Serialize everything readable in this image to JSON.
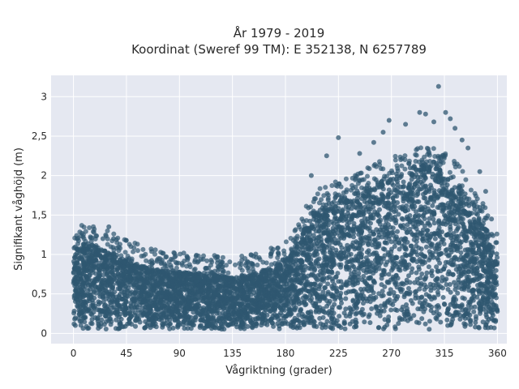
{
  "chart_data": {
    "type": "scatter",
    "title": "År 1979 - 2019",
    "subtitle": "Koordinat (Sweref 99 TM): E 352138, N 6257789",
    "xlabel": "Vågriktning (grader)",
    "ylabel": "Signifikant våghöjd (m)",
    "xlim": [
      -19,
      368
    ],
    "ylim": [
      -0.13,
      3.27
    ],
    "x_ticks": [
      0,
      45,
      90,
      135,
      180,
      225,
      270,
      315,
      360
    ],
    "y_ticks": [
      0,
      0.5,
      1,
      1.5,
      2,
      2.5,
      3
    ],
    "y_tick_labels": [
      "0",
      "0,5",
      "1",
      "1,5",
      "2",
      "2,5",
      "3"
    ],
    "grid": true,
    "point_color": "#2f5770",
    "background_color": "#e5e8f1",
    "envelope": {
      "description_x": [
        0,
        10,
        20,
        30,
        45,
        60,
        75,
        90,
        105,
        120,
        135,
        150,
        165,
        180,
        190,
        200,
        210,
        225,
        240,
        255,
        270,
        285,
        300,
        315,
        330,
        340,
        350,
        355,
        360
      ],
      "y_max": [
        1.1,
        1.15,
        1.1,
        1.05,
        0.95,
        0.85,
        0.8,
        0.78,
        0.76,
        0.74,
        0.72,
        0.75,
        0.82,
        0.92,
        1.1,
        1.45,
        1.6,
        1.7,
        1.8,
        1.9,
        2.0,
        2.1,
        2.15,
        2.05,
        1.85,
        1.6,
        1.35,
        1.15,
        1.0
      ]
    },
    "outliers": [
      {
        "x": 3,
        "y": 1.2
      },
      {
        "x": 30,
        "y": 1.35
      },
      {
        "x": 25,
        "y": 1.2
      },
      {
        "x": 34,
        "y": 1.2
      },
      {
        "x": 202,
        "y": 2.0
      },
      {
        "x": 215,
        "y": 2.25
      },
      {
        "x": 225,
        "y": 2.48
      },
      {
        "x": 243,
        "y": 2.28
      },
      {
        "x": 255,
        "y": 2.42
      },
      {
        "x": 263,
        "y": 2.55
      },
      {
        "x": 268,
        "y": 2.7
      },
      {
        "x": 282,
        "y": 2.65
      },
      {
        "x": 294,
        "y": 2.8
      },
      {
        "x": 299,
        "y": 2.78
      },
      {
        "x": 306,
        "y": 2.68
      },
      {
        "x": 310,
        "y": 3.13
      },
      {
        "x": 316,
        "y": 2.8
      },
      {
        "x": 320,
        "y": 2.72
      },
      {
        "x": 324,
        "y": 2.6
      },
      {
        "x": 330,
        "y": 2.45
      },
      {
        "x": 335,
        "y": 2.35
      },
      {
        "x": 345,
        "y": 2.05
      },
      {
        "x": 350,
        "y": 1.8
      },
      {
        "x": 355,
        "y": 1.45
      }
    ]
  }
}
